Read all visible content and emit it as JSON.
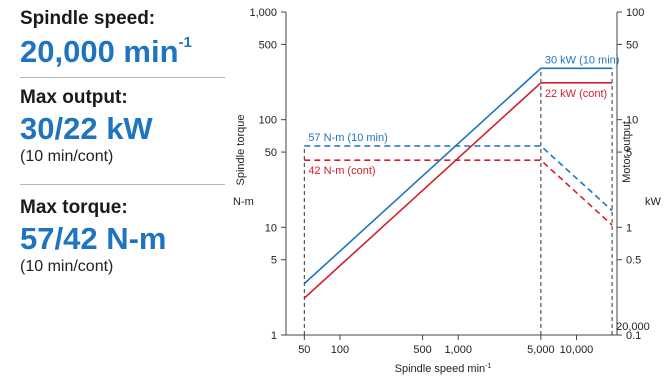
{
  "colors": {
    "accent_blue": "#1f74bf",
    "cont_red": "#d3202f",
    "text": "#222222",
    "axis": "#444444"
  },
  "specs": [
    {
      "label": "Spindle speed:",
      "value": "20,000 min",
      "value_sup": "-1",
      "sub": ""
    },
    {
      "label": "Max output:",
      "value": "30/22 kW",
      "value_sup": "",
      "sub": "(10 min/cont)"
    },
    {
      "label": "Max torque:",
      "value": "57/42 N-m",
      "value_sup": "",
      "sub": "(10 min/cont)"
    }
  ],
  "chart_data": {
    "type": "line",
    "scale": "log-log",
    "xlabel": "Spindle speed min",
    "xlabel_sup": "-1",
    "ylabel_left": "Spindle torque",
    "ylabel_left_unit": "N-m",
    "ylabel_right": "Motor output",
    "ylabel_right_unit": "kW",
    "xlim": [
      35,
      22000
    ],
    "ylim_left": [
      1,
      1000
    ],
    "ylim_right": [
      0.1,
      100
    ],
    "x_ticks": [
      {
        "v": 50,
        "label": "50"
      },
      {
        "v": 100,
        "label": "100"
      },
      {
        "v": 500,
        "label": "500"
      },
      {
        "v": 1000,
        "label": "1,000"
      },
      {
        "v": 5000,
        "label": "5,000"
      },
      {
        "v": 10000,
        "label": "10,000"
      }
    ],
    "y_left_ticks": [
      {
        "v": 1,
        "label": "1"
      },
      {
        "v": 5,
        "label": "5"
      },
      {
        "v": 10,
        "label": "10"
      },
      {
        "v": 50,
        "label": "50"
      },
      {
        "v": 100,
        "label": "100"
      },
      {
        "v": 500,
        "label": "500"
      },
      {
        "v": 1000,
        "label": "1,000"
      }
    ],
    "y_right_ticks": [
      {
        "v": 0.1,
        "label": "0.1"
      },
      {
        "v": 0.5,
        "label": "0.5"
      },
      {
        "v": 1,
        "label": "1"
      },
      {
        "v": 5,
        "label": "5"
      },
      {
        "v": 10,
        "label": "10"
      },
      {
        "v": 50,
        "label": "50"
      },
      {
        "v": 100,
        "label": "100"
      }
    ],
    "series": [
      {
        "axis": "left",
        "style": "dashed",
        "color": "#1f74bf",
        "x": [
          50,
          5000,
          20000
        ],
        "y": [
          57,
          57,
          14.3
        ]
      },
      {
        "axis": "left",
        "style": "dashed",
        "color": "#d3202f",
        "x": [
          50,
          5000,
          20000
        ],
        "y": [
          42,
          42,
          10.5
        ]
      },
      {
        "axis": "right",
        "style": "solid",
        "color": "#1f74bf",
        "x": [
          50,
          5000,
          20000
        ],
        "y": [
          0.3,
          30,
          30
        ]
      },
      {
        "axis": "right",
        "style": "solid",
        "color": "#d3202f",
        "x": [
          50,
          5000,
          20000
        ],
        "y": [
          0.22,
          22,
          22
        ]
      }
    ],
    "guides": [
      {
        "x": 50,
        "y_left": [
          1,
          57
        ]
      },
      {
        "x": 5000,
        "y_left": [
          1,
          300
        ]
      },
      {
        "x": 20000,
        "y_left": [
          1,
          300
        ]
      }
    ],
    "annotations": [
      {
        "text": "30 kW (10 min)",
        "color": "#1f74bf",
        "x": 5000,
        "y_right": 30,
        "anchor": "above-right"
      },
      {
        "text": "22 kW (cont)",
        "color": "#d3202f",
        "x": 5000,
        "y_right": 22,
        "anchor": "below-right"
      },
      {
        "text": "57 N-m (10 min)",
        "color": "#1f74bf",
        "x": 50,
        "y_left": 57,
        "anchor": "above-right"
      },
      {
        "text": "42 N-m (cont)",
        "color": "#d3202f",
        "x": 50,
        "y_left": 42,
        "anchor": "below-right"
      },
      {
        "text": "20,000",
        "color": "#222222",
        "x": 20000,
        "y_left": 1,
        "anchor": "above-right"
      }
    ]
  }
}
